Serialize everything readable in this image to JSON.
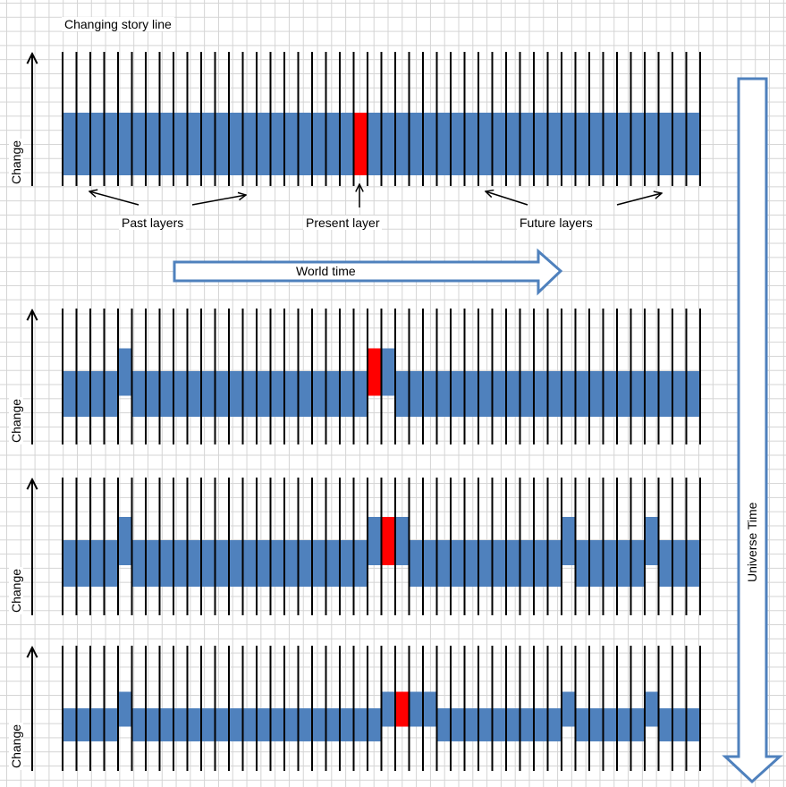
{
  "title": "Changing story line",
  "labels": {
    "past": "Past layers",
    "present": "Present layer",
    "future": "Future layers",
    "world_time": "World time",
    "universe_time": "Universe Time",
    "change": "Change"
  },
  "colors": {
    "layer_fill": "#4f81bd",
    "present_fill": "#ff0000",
    "arrow_stroke": "#4f81bd",
    "arrow_fill": "#ffffff",
    "line": "#000000"
  },
  "diagram": {
    "slices_per_row": 46,
    "rows": [
      {
        "present_index": 21,
        "raised": []
      },
      {
        "present_index": 22,
        "raised": [
          4,
          22,
          23
        ]
      },
      {
        "present_index": 23,
        "raised": [
          4,
          22,
          23,
          24,
          36,
          42
        ]
      },
      {
        "present_index": 24,
        "raised": [
          4,
          23,
          24,
          25,
          26,
          36,
          42
        ]
      }
    ]
  }
}
